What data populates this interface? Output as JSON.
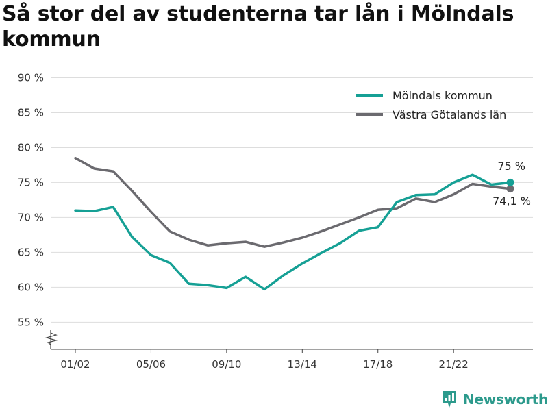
{
  "header": {
    "title": "Så stor del av studenterna tar lån i Mölndals kommun"
  },
  "brand": {
    "name": "Newsworthy",
    "icon": "bar-chart-pin-icon"
  },
  "colors": {
    "series_1": "#16a095",
    "series_2": "#6b6a6f",
    "grid": "#dddddd",
    "axis": "#444444",
    "brand": "#2c9a8c"
  },
  "chart_data": {
    "type": "line",
    "title": "Så stor del av studenterna tar lån i Mölndals kommun",
    "xlabel": "",
    "ylabel": "",
    "ylim": [
      51.5,
      90
    ],
    "y_axis_break": true,
    "yticks": [
      55,
      60,
      65,
      70,
      75,
      80,
      85,
      90
    ],
    "ytick_labels": [
      "55 %",
      "60 %",
      "65 %",
      "70 %",
      "75 %",
      "80 %",
      "85 %",
      "90 %"
    ],
    "x": [
      "01/02",
      "02/03",
      "03/04",
      "04/05",
      "05/06",
      "06/07",
      "07/08",
      "08/09",
      "09/10",
      "10/11",
      "11/12",
      "12/13",
      "13/14",
      "14/15",
      "15/16",
      "16/17",
      "17/18",
      "18/19",
      "19/20",
      "20/21",
      "21/22",
      "22/23",
      "23/24",
      "24/25"
    ],
    "xtick_labels": [
      "01/02",
      "05/06",
      "09/10",
      "13/14",
      "17/18",
      "21/22"
    ],
    "grid": true,
    "legend": "top-right",
    "series": [
      {
        "name": "Mölndals kommun",
        "values": [
          71.0,
          70.9,
          71.5,
          67.2,
          64.6,
          63.5,
          60.5,
          60.3,
          59.9,
          61.5,
          59.7,
          61.7,
          63.4,
          64.9,
          66.3,
          68.1,
          68.6,
          72.2,
          73.2,
          73.3,
          75.0,
          76.1,
          74.7,
          75.0
        ],
        "end_label": "75 %"
      },
      {
        "name": "Västra Götalands län",
        "values": [
          78.5,
          77.0,
          76.6,
          73.8,
          70.8,
          68.0,
          66.8,
          66.0,
          66.3,
          66.5,
          65.8,
          66.4,
          67.1,
          68.0,
          69.0,
          70.0,
          71.1,
          71.3,
          72.7,
          72.2,
          73.3,
          74.8,
          74.4,
          74.1
        ],
        "end_label": "74,1 %"
      }
    ]
  }
}
